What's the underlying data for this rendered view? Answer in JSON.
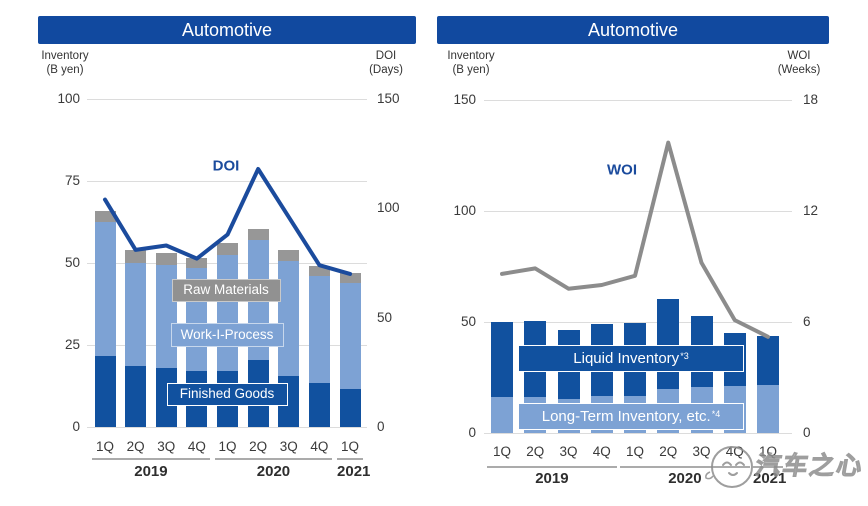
{
  "watermark": {
    "text": "汽车之心"
  },
  "chart_data": [
    {
      "type": "stacked-bar+line",
      "title": "Automotive",
      "left_axis": {
        "label": "Inventory",
        "sublabel": "(B yen)",
        "max": 100,
        "ticks": [
          100,
          75,
          50,
          25,
          0
        ]
      },
      "right_axis": {
        "label": "DOI",
        "sublabel": "(Days)",
        "max": 150,
        "ticks": [
          150,
          100,
          50,
          0
        ]
      },
      "categories": [
        "1Q",
        "2Q",
        "3Q",
        "4Q",
        "1Q",
        "2Q",
        "3Q",
        "4Q",
        "1Q"
      ],
      "year_groups": [
        {
          "label": "2019",
          "count": 4
        },
        {
          "label": "2020",
          "count": 4
        },
        {
          "label": "2021",
          "count": 1
        }
      ],
      "series": [
        {
          "name": "Finished Goods",
          "color": "#11519F",
          "values": [
            21.5,
            18.5,
            18,
            17,
            17,
            20.5,
            15.5,
            13.5,
            11.5
          ]
        },
        {
          "name": "Work-I-Process",
          "color": "#7DA2D4",
          "values": [
            41,
            31.5,
            31.5,
            31.5,
            35.5,
            36.5,
            35,
            32.5,
            32.5
          ]
        },
        {
          "name": "Raw Materials",
          "color": "#979797",
          "values": [
            3.5,
            4,
            3.5,
            3,
            3.5,
            3.5,
            3.5,
            3,
            3
          ]
        }
      ],
      "line_series": {
        "name": "DOI",
        "color": "#1B4B9D",
        "values": [
          104,
          81,
          83,
          77,
          88,
          118,
          96,
          74,
          70
        ]
      },
      "line_label": "DOI",
      "overlay_labels": [
        {
          "text": "Raw Materials",
          "sup": "",
          "bg": "#919191",
          "border": "#C9C9C9"
        },
        {
          "text": "Work-I-Process",
          "sup": "",
          "bg": "#7DA2D4",
          "border": "#C7D7EC"
        },
        {
          "text": "Finished Goods",
          "sup": "",
          "bg": "#11519F",
          "border": "#FFFFFF"
        }
      ]
    },
    {
      "type": "stacked-bar+line",
      "title": "Automotive",
      "left_axis": {
        "label": "Inventory",
        "sublabel": "(B yen)",
        "max": 150,
        "ticks": [
          150,
          100,
          50,
          0
        ]
      },
      "right_axis": {
        "label": "WOI",
        "sublabel": "(Weeks)",
        "max": 18,
        "ticks": [
          18,
          12,
          6,
          0
        ]
      },
      "categories": [
        "1Q",
        "2Q",
        "3Q",
        "4Q",
        "1Q",
        "2Q",
        "3Q",
        "4Q",
        "1Q"
      ],
      "year_groups": [
        {
          "label": "2019",
          "count": 4
        },
        {
          "label": "2020",
          "count": 4
        },
        {
          "label": "2021",
          "count": 1
        }
      ],
      "series": [
        {
          "name": "Long-Term Inventory, etc.",
          "color": "#7DA2D4",
          "values": [
            16,
            16,
            15.5,
            16.5,
            16.5,
            20,
            20.5,
            21,
            21.5
          ]
        },
        {
          "name": "Liquid Inventory",
          "color": "#11519F",
          "values": [
            34,
            34.5,
            31,
            32.5,
            33,
            40.5,
            32,
            24,
            22
          ]
        }
      ],
      "line_series": {
        "name": "WOI",
        "color": "#8C8C8C",
        "values": [
          8.6,
          8.9,
          7.8,
          8.0,
          8.5,
          15.7,
          9.2,
          6.1,
          5.2
        ]
      },
      "line_label": "WOI",
      "overlay_labels": [
        {
          "text": "Liquid Inventory",
          "sup": "*3",
          "bg": "#11519F",
          "border": "#FFFFFF"
        },
        {
          "text": "Long-Term Inventory, etc.",
          "sup": "*4",
          "bg": "#7DA2D4",
          "border": "#FFFFFF"
        }
      ]
    }
  ]
}
